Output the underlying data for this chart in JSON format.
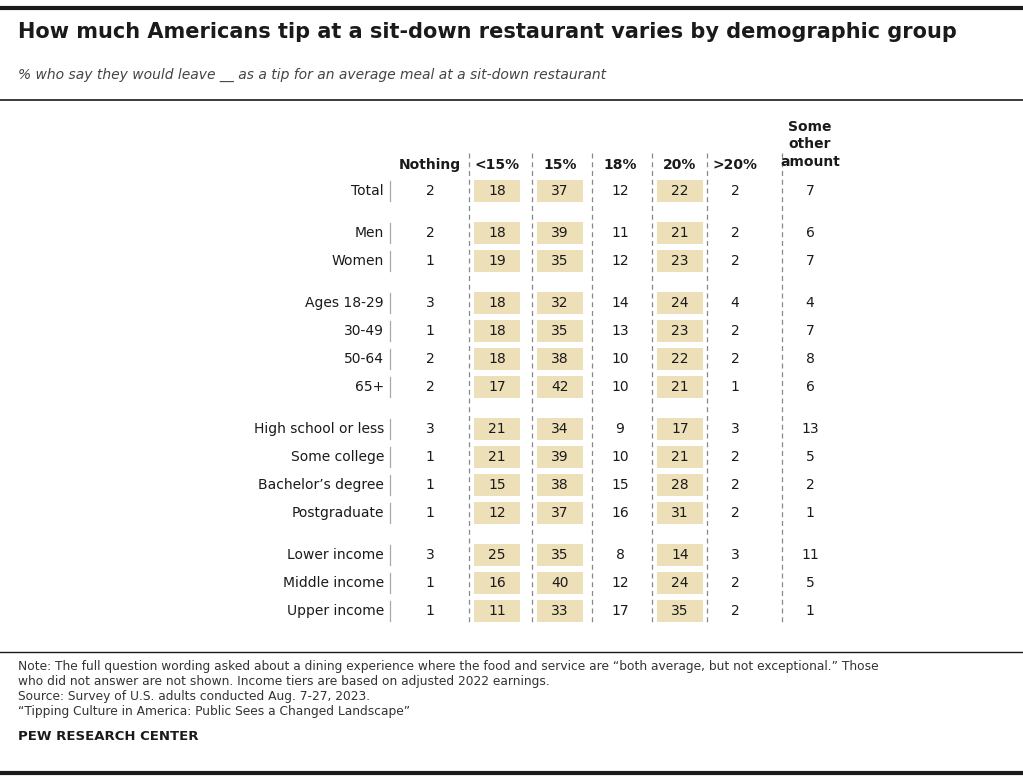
{
  "title": "How much Americans tip at a sit-down restaurant varies by demographic group",
  "subtitle": "% who say they would leave __ as a tip for an average meal at a sit-down restaurant",
  "columns": [
    "Nothing",
    "<15%",
    "15%",
    "18%",
    "20%",
    ">20%",
    "Some\nother\namount"
  ],
  "rows": [
    {
      "label": "Total",
      "values": [
        2,
        18,
        37,
        12,
        22,
        2,
        7
      ],
      "group": "total"
    },
    {
      "label": "Men",
      "values": [
        2,
        18,
        39,
        11,
        21,
        2,
        6
      ],
      "group": "gender"
    },
    {
      "label": "Women",
      "values": [
        1,
        19,
        35,
        12,
        23,
        2,
        7
      ],
      "group": "gender"
    },
    {
      "label": "Ages 18-29",
      "values": [
        3,
        18,
        32,
        14,
        24,
        4,
        4
      ],
      "group": "age"
    },
    {
      "label": "30-49",
      "values": [
        1,
        18,
        35,
        13,
        23,
        2,
        7
      ],
      "group": "age"
    },
    {
      "label": "50-64",
      "values": [
        2,
        18,
        38,
        10,
        22,
        2,
        8
      ],
      "group": "age"
    },
    {
      "label": "65+",
      "values": [
        2,
        17,
        42,
        10,
        21,
        1,
        6
      ],
      "group": "age"
    },
    {
      "label": "High school or less",
      "values": [
        3,
        21,
        34,
        9,
        17,
        3,
        13
      ],
      "group": "education"
    },
    {
      "label": "Some college",
      "values": [
        1,
        21,
        39,
        10,
        21,
        2,
        5
      ],
      "group": "education"
    },
    {
      "label": "Bachelor’s degree",
      "values": [
        1,
        15,
        38,
        15,
        28,
        2,
        2
      ],
      "group": "education"
    },
    {
      "label": "Postgraduate",
      "values": [
        1,
        12,
        37,
        16,
        31,
        2,
        1
      ],
      "group": "education"
    },
    {
      "label": "Lower income",
      "values": [
        3,
        25,
        35,
        8,
        14,
        3,
        11
      ],
      "group": "income"
    },
    {
      "label": "Middle income",
      "values": [
        1,
        16,
        40,
        12,
        24,
        2,
        5
      ],
      "group": "income"
    },
    {
      "label": "Upper income",
      "values": [
        1,
        11,
        33,
        17,
        35,
        2,
        1
      ],
      "group": "income"
    }
  ],
  "group_sizes": [
    1,
    2,
    4,
    4,
    3
  ],
  "highlight_cols": [
    1,
    2,
    4
  ],
  "highlight_color": "#ede0b8",
  "note_line1": "Note: The full question wording asked about a dining experience where the food and service are “both average, but not exceptional.” Those",
  "note_line2": "who did not answer are not shown. Income tiers are based on adjusted 2022 earnings.",
  "note_line3": "Source: Survey of U.S. adults conducted Aug. 7-27, 2023.",
  "note_line4": "“Tipping Culture in America: Public Sees a Changed Landscape”",
  "footer": "PEW RESEARCH CENTER",
  "bg_color": "#ffffff",
  "text_color": "#1a1a1a",
  "grid_color": "#888888",
  "title_fontsize": 15,
  "subtitle_fontsize": 10,
  "data_fontsize": 10,
  "header_fontsize": 10,
  "note_fontsize": 8.8,
  "footer_fontsize": 9.5
}
